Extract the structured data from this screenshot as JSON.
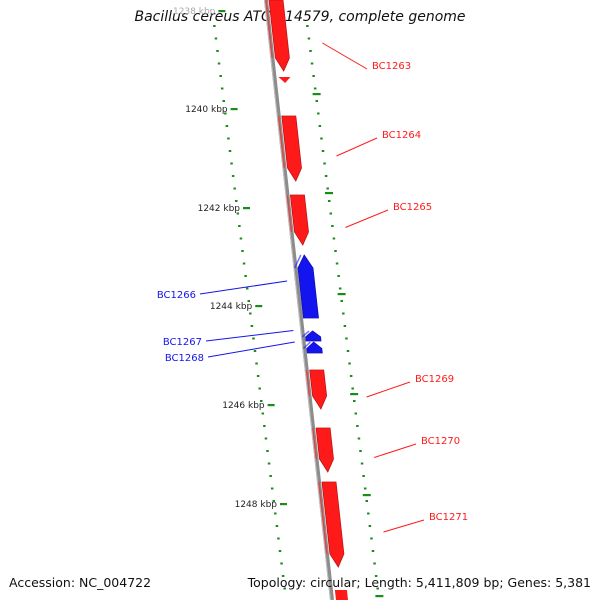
{
  "title": "Bacillus cereus ATCC 14579, complete genome",
  "footer": {
    "accession": "Accession: NC_004722",
    "summary": "Topology: circular; Length: 5,411,809 bp; Genes: 5,381"
  },
  "colors": {
    "forward_gene": "#ff1a1a",
    "reverse_gene": "#1414ee",
    "backbone": "#8c8c8c",
    "ticks": "#1a8c1a"
  },
  "scale_ticks": [
    {
      "label": "1238 kbp"
    },
    {
      "label": "1240 kbp"
    },
    {
      "label": "1242 kbp"
    },
    {
      "label": "1244 kbp"
    },
    {
      "label": "1246 kbp"
    },
    {
      "label": "1248 kbp"
    }
  ],
  "genes": [
    {
      "name": "BC1263",
      "strand": "+"
    },
    {
      "name": "BC1264",
      "strand": "+"
    },
    {
      "name": "BC1265",
      "strand": "+"
    },
    {
      "name": "BC1266",
      "strand": "-"
    },
    {
      "name": "BC1267",
      "strand": "-"
    },
    {
      "name": "BC1268",
      "strand": "-"
    },
    {
      "name": "BC1269",
      "strand": "+"
    },
    {
      "name": "BC1270",
      "strand": "+"
    },
    {
      "name": "BC1271",
      "strand": "+"
    }
  ]
}
